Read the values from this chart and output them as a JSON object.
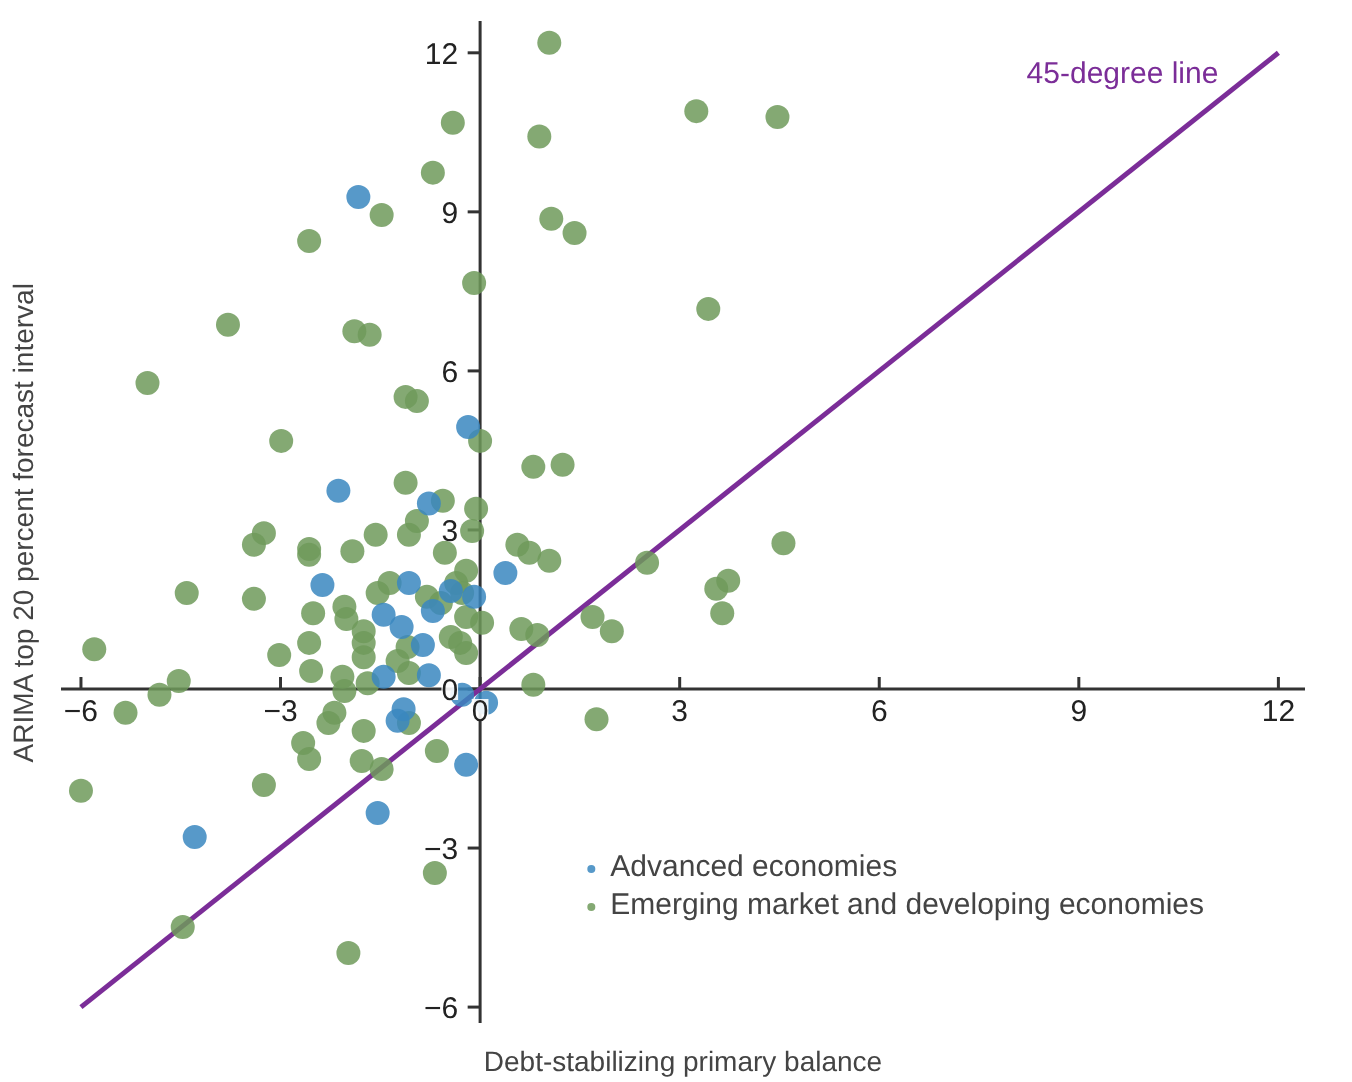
{
  "chart_data": {
    "type": "scatter",
    "xlabel": "Debt-stabilizing primary balance",
    "ylabel": "ARIMA top 20 percent forecast interval",
    "xlim": [
      -6.3,
      12.4
    ],
    "ylim": [
      -6.3,
      12.6
    ],
    "xticks": [
      {
        "value": -6,
        "label": "−6"
      },
      {
        "value": -3,
        "label": "−3"
      },
      0,
      3,
      6,
      9,
      12
    ],
    "yticks": [
      {
        "value": -6,
        "label": "−6"
      },
      {
        "value": -3,
        "label": "−3"
      },
      0,
      3,
      6,
      9,
      12
    ],
    "grid": false,
    "legend": "bottom right",
    "marker": "circle",
    "series": [
      {
        "name": "Advanced economies",
        "color": "#3a87c0",
        "x": [
          -1.83,
          -0.18,
          -2.13,
          -0.77,
          -2.37,
          0.38,
          -1.07,
          -1.45,
          -1.18,
          -0.86,
          -0.71,
          -0.44,
          -0.09,
          -1.45,
          -0.77,
          -1.15,
          -1.24,
          -0.27,
          0.09,
          -0.21,
          -1.54,
          -4.29
        ],
        "values": [
          9.28,
          4.94,
          3.74,
          3.5,
          1.96,
          2.19,
          2.0,
          1.4,
          1.17,
          0.83,
          1.47,
          1.85,
          1.74,
          0.23,
          0.26,
          -0.38,
          -0.6,
          -0.11,
          -0.26,
          -1.43,
          -2.34,
          -2.79
        ]
      },
      {
        "name": "Emerging market and developing economies",
        "color": "#6e9a5b",
        "x": [
          -0.41,
          -0.71,
          -1.48,
          -2.57,
          -0.09,
          -3.79,
          -1.89,
          -1.66,
          -5.0,
          -1.12,
          -0.95,
          0.0,
          -2.99,
          -1.12,
          -0.56,
          -0.06,
          1.04,
          3.25,
          4.47,
          0.89,
          1.07,
          1.42,
          3.43,
          0.8,
          1.24,
          -3.25,
          -3.4,
          -2.57,
          -2.57,
          -1.92,
          -1.57,
          -1.07,
          -0.95,
          -0.53,
          -0.12,
          -4.41,
          -3.4,
          -5.8,
          -4.53,
          -4.82,
          -5.33,
          -3.02,
          -2.57,
          -2.54,
          -2.51,
          -2.04,
          -2.01,
          -1.75,
          -1.75,
          -1.75,
          -2.07,
          -2.04,
          -1.69,
          -1.54,
          -1.36,
          -1.09,
          -1.24,
          -1.07,
          -0.8,
          -0.59,
          -0.36,
          -0.21,
          -0.44,
          -0.3,
          -0.21,
          0.03,
          -0.21,
          -2.19,
          -2.28,
          -1.75,
          -2.66,
          -2.57,
          -1.78,
          -1.48,
          -1.07,
          -0.65,
          -3.25,
          -6.0,
          -0.68,
          -4.47,
          -1.98,
          0.56,
          0.74,
          1.04,
          4.56,
          2.51,
          3.55,
          3.73,
          3.64,
          0.62,
          0.86,
          1.69,
          1.98,
          -0.27,
          0.8,
          1.75
        ],
        "values": [
          10.68,
          9.74,
          8.94,
          8.45,
          7.66,
          6.87,
          6.75,
          6.68,
          5.77,
          5.51,
          5.43,
          4.68,
          4.68,
          3.89,
          3.55,
          3.4,
          12.19,
          10.9,
          10.79,
          10.42,
          8.87,
          8.6,
          7.17,
          4.19,
          4.23,
          2.94,
          2.72,
          2.64,
          2.53,
          2.6,
          2.91,
          2.91,
          3.17,
          2.57,
          2.98,
          1.81,
          1.7,
          0.75,
          0.15,
          -0.11,
          -0.45,
          0.64,
          0.87,
          0.34,
          1.43,
          1.55,
          1.32,
          1.09,
          0.87,
          0.6,
          0.23,
          -0.04,
          0.11,
          1.81,
          2.0,
          0.79,
          0.53,
          0.3,
          1.74,
          1.62,
          2.0,
          2.23,
          0.98,
          0.87,
          0.68,
          1.25,
          1.36,
          -0.45,
          -0.64,
          -0.79,
          -1.02,
          -1.32,
          -1.36,
          -1.51,
          -0.64,
          -1.17,
          -1.81,
          -1.92,
          -3.47,
          -4.49,
          -4.98,
          2.72,
          2.57,
          2.42,
          2.75,
          2.38,
          1.89,
          2.04,
          1.43,
          1.13,
          1.02,
          1.36,
          1.09,
          1.81,
          0.08,
          -0.57
        ]
      },
      {
        "name": "45-degree line",
        "type": "line",
        "color": "#7b2d98",
        "marker": "none",
        "x": [
          -6,
          12
        ],
        "values": [
          -6,
          12
        ]
      }
    ]
  }
}
